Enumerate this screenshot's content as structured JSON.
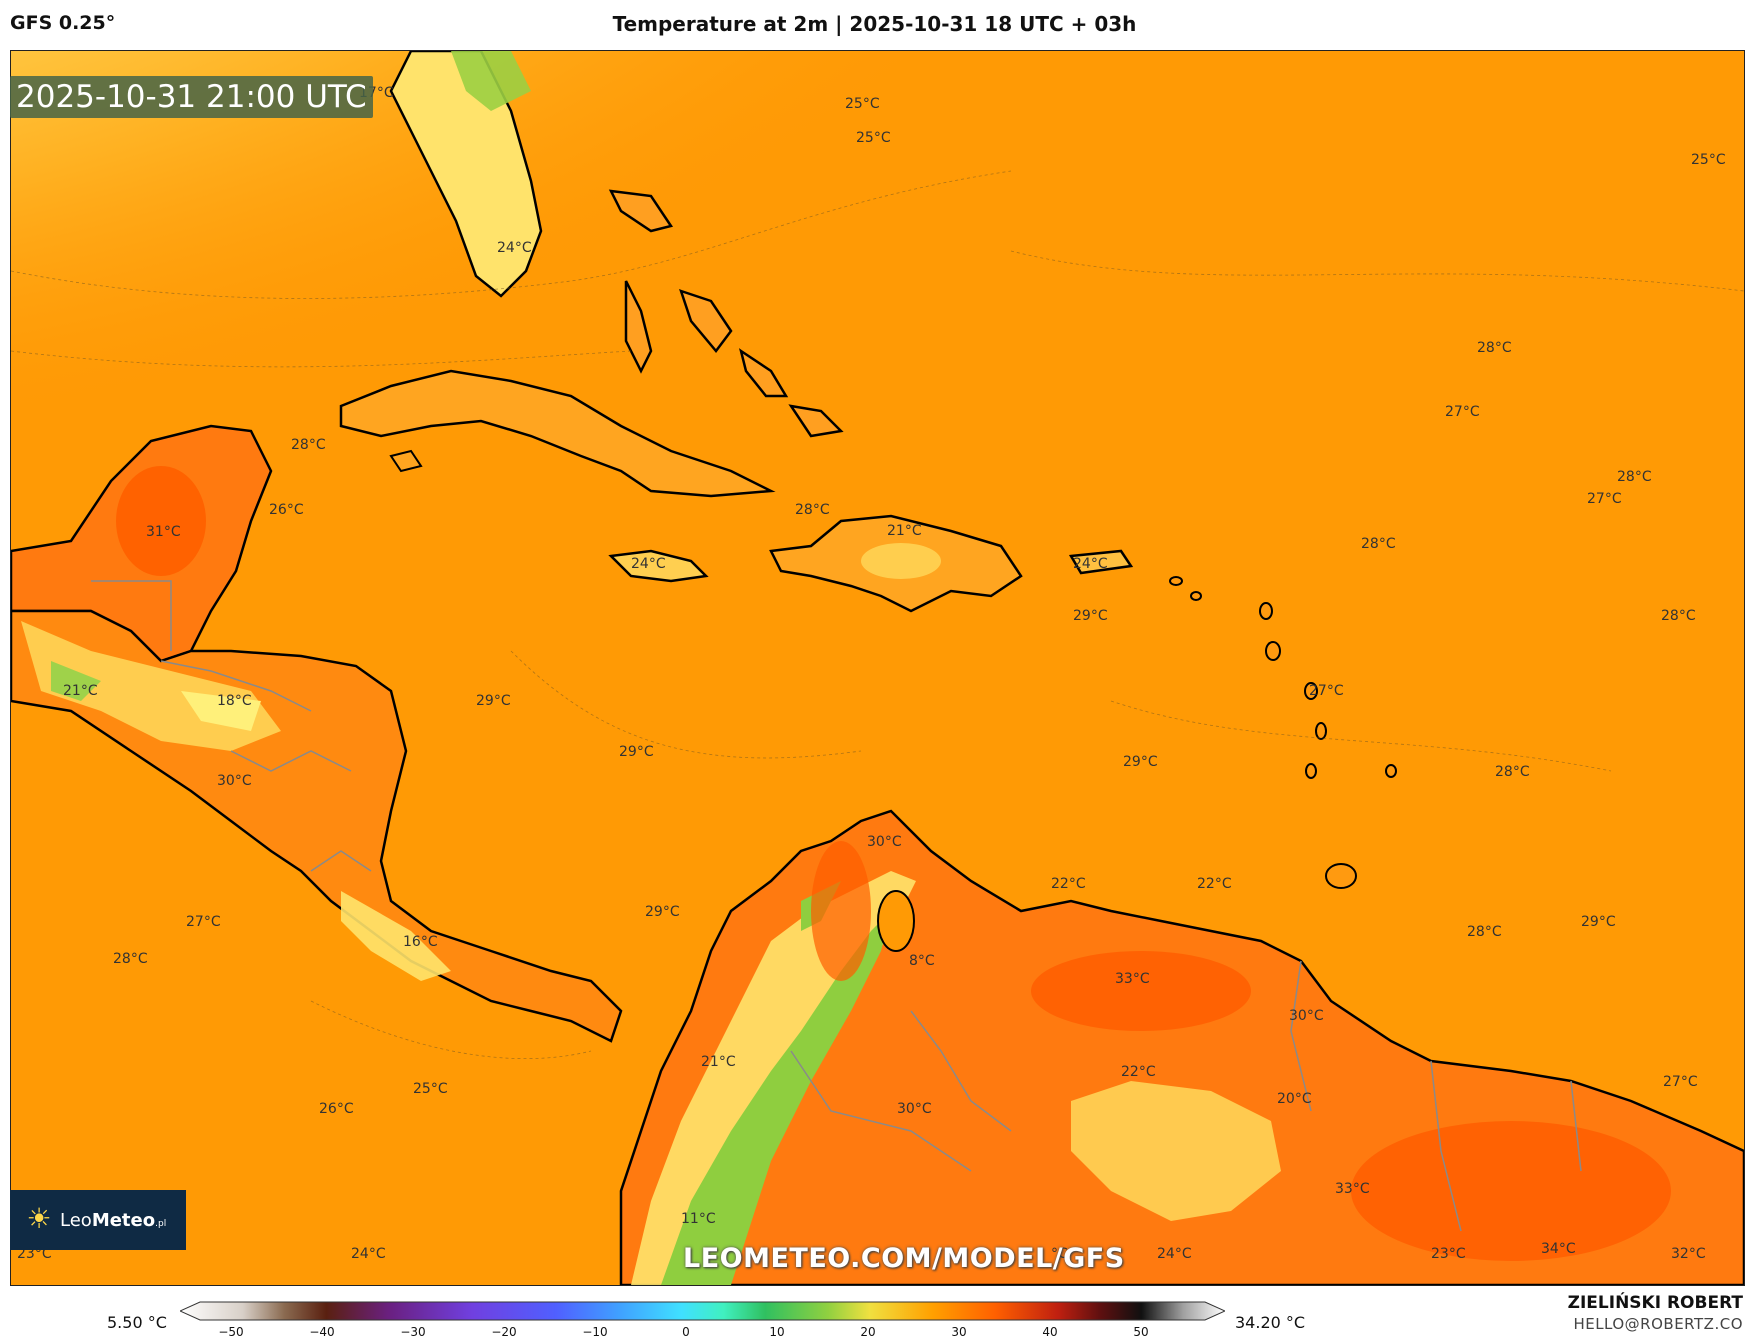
{
  "header": {
    "model": "GFS 0.25°",
    "title": "Temperature at 2m | 2025-10-31 18 UTC + 03h"
  },
  "valid_time": "2025-10-31 21:00 UTC",
  "watermark_url": "LEOMETEO.COM/MODEL/GFS",
  "logo": {
    "prefix": "Leo",
    "bold": "Meteo",
    "suffix": ".pl"
  },
  "legend": {
    "min_value": "5.50 °C",
    "max_value": "34.20 °C",
    "ticks": [
      "−50",
      "−40",
      "−30",
      "−20",
      "−10",
      "0",
      "10",
      "20",
      "30",
      "40",
      "50"
    ]
  },
  "author": {
    "name": "ZIELIŃSKI ROBERT",
    "email": "HELLO@ROBERTZ.CO"
  },
  "temp_labels": [
    "17°C",
    "25°C",
    "25°C",
    "25°C",
    "24°C",
    "28°C",
    "27°C",
    "28°C",
    "27°C",
    "28°C",
    "26°C",
    "31°C",
    "28°C",
    "21°C",
    "24°C",
    "24°C",
    "28°C",
    "29°C",
    "28°C",
    "21°C",
    "18°C",
    "29°C",
    "27°C",
    "29°C",
    "29°C",
    "28°C",
    "30°C",
    "30°C",
    "22°C",
    "22°C",
    "27°C",
    "29°C",
    "28°C",
    "29°C",
    "28°C",
    "16°C",
    "8°C",
    "33°C",
    "30°C",
    "21°C",
    "22°C",
    "20°C",
    "27°C",
    "25°C",
    "30°C",
    "26°C",
    "33°C",
    "11°C",
    "23°C",
    "24°C",
    "°C",
    "24°C",
    "23°C",
    "34°C",
    "32°C"
  ],
  "colors": {
    "sea_warm": "#ff9500",
    "land_hot": "#ff6a00",
    "cool_yellow": "#ffe066",
    "cold_green": "#8ccf3f",
    "coast": "#000000",
    "border": "#8a8a8a"
  }
}
